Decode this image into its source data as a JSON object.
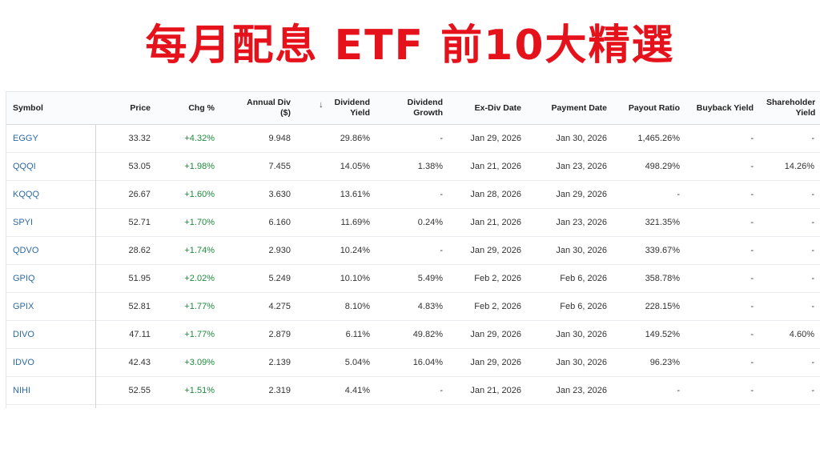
{
  "title": "每月配息 ETF 前10大精選",
  "columns": [
    {
      "line1": "Symbol",
      "line2": ""
    },
    {
      "line1": "Price",
      "line2": ""
    },
    {
      "line1": "Chg %",
      "line2": ""
    },
    {
      "line1": "Annual Div",
      "line2": "($)"
    },
    {
      "line1": "Dividend",
      "line2": "Yield"
    },
    {
      "line1": "Dividend",
      "line2": "Growth"
    },
    {
      "line1": "Ex-Div Date",
      "line2": ""
    },
    {
      "line1": "Payment Date",
      "line2": ""
    },
    {
      "line1": "Payout Ratio",
      "line2": ""
    },
    {
      "line1": "Buyback Yield",
      "line2": ""
    },
    {
      "line1": "Shareholder",
      "line2": "Yield"
    }
  ],
  "sort_icon": "arrow-down-icon",
  "rows": [
    {
      "symbol": "EGGY",
      "price": "33.32",
      "chg": "+4.32%",
      "annual_div": "9.948",
      "yield": "29.86%",
      "growth": "-",
      "ex_div": "Jan 29, 2026",
      "payment": "Jan 30, 2026",
      "payout": "1,465.26%",
      "buyback": "-",
      "shareholder": "-"
    },
    {
      "symbol": "QQQI",
      "price": "53.05",
      "chg": "+1.98%",
      "annual_div": "7.455",
      "yield": "14.05%",
      "growth": "1.38%",
      "ex_div": "Jan 21, 2026",
      "payment": "Jan 23, 2026",
      "payout": "498.29%",
      "buyback": "-",
      "shareholder": "14.26%"
    },
    {
      "symbol": "KQQQ",
      "price": "26.67",
      "chg": "+1.60%",
      "annual_div": "3.630",
      "yield": "13.61%",
      "growth": "-",
      "ex_div": "Jan 28, 2026",
      "payment": "Jan 29, 2026",
      "payout": "-",
      "buyback": "-",
      "shareholder": "-"
    },
    {
      "symbol": "SPYI",
      "price": "52.71",
      "chg": "+1.70%",
      "annual_div": "6.160",
      "yield": "11.69%",
      "growth": "0.24%",
      "ex_div": "Jan 21, 2026",
      "payment": "Jan 23, 2026",
      "payout": "321.35%",
      "buyback": "-",
      "shareholder": "-"
    },
    {
      "symbol": "QDVO",
      "price": "28.62",
      "chg": "+1.74%",
      "annual_div": "2.930",
      "yield": "10.24%",
      "growth": "-",
      "ex_div": "Jan 29, 2026",
      "payment": "Jan 30, 2026",
      "payout": "339.67%",
      "buyback": "-",
      "shareholder": "-"
    },
    {
      "symbol": "GPIQ",
      "price": "51.95",
      "chg": "+2.02%",
      "annual_div": "5.249",
      "yield": "10.10%",
      "growth": "5.49%",
      "ex_div": "Feb 2, 2026",
      "payment": "Feb 6, 2026",
      "payout": "358.78%",
      "buyback": "-",
      "shareholder": "-"
    },
    {
      "symbol": "GPIX",
      "price": "52.81",
      "chg": "+1.77%",
      "annual_div": "4.275",
      "yield": "8.10%",
      "growth": "4.83%",
      "ex_div": "Feb 2, 2026",
      "payment": "Feb 6, 2026",
      "payout": "228.15%",
      "buyback": "-",
      "shareholder": "-"
    },
    {
      "symbol": "DIVO",
      "price": "47.11",
      "chg": "+1.77%",
      "annual_div": "2.879",
      "yield": "6.11%",
      "growth": "49.82%",
      "ex_div": "Jan 29, 2026",
      "payment": "Jan 30, 2026",
      "payout": "149.52%",
      "buyback": "-",
      "shareholder": "4.60%"
    },
    {
      "symbol": "IDVO",
      "price": "42.43",
      "chg": "+3.09%",
      "annual_div": "2.139",
      "yield": "5.04%",
      "growth": "16.04%",
      "ex_div": "Jan 29, 2026",
      "payment": "Jan 30, 2026",
      "payout": "96.23%",
      "buyback": "-",
      "shareholder": "-"
    },
    {
      "symbol": "NIHI",
      "price": "52.55",
      "chg": "+1.51%",
      "annual_div": "2.319",
      "yield": "4.41%",
      "growth": "-",
      "ex_div": "Jan 21, 2026",
      "payment": "Jan 23, 2026",
      "payout": "-",
      "buyback": "-",
      "shareholder": "-"
    }
  ],
  "colors": {
    "title": "#e5121c",
    "symbol_link": "#2c6aa6",
    "positive_change": "#1d8a3a"
  }
}
